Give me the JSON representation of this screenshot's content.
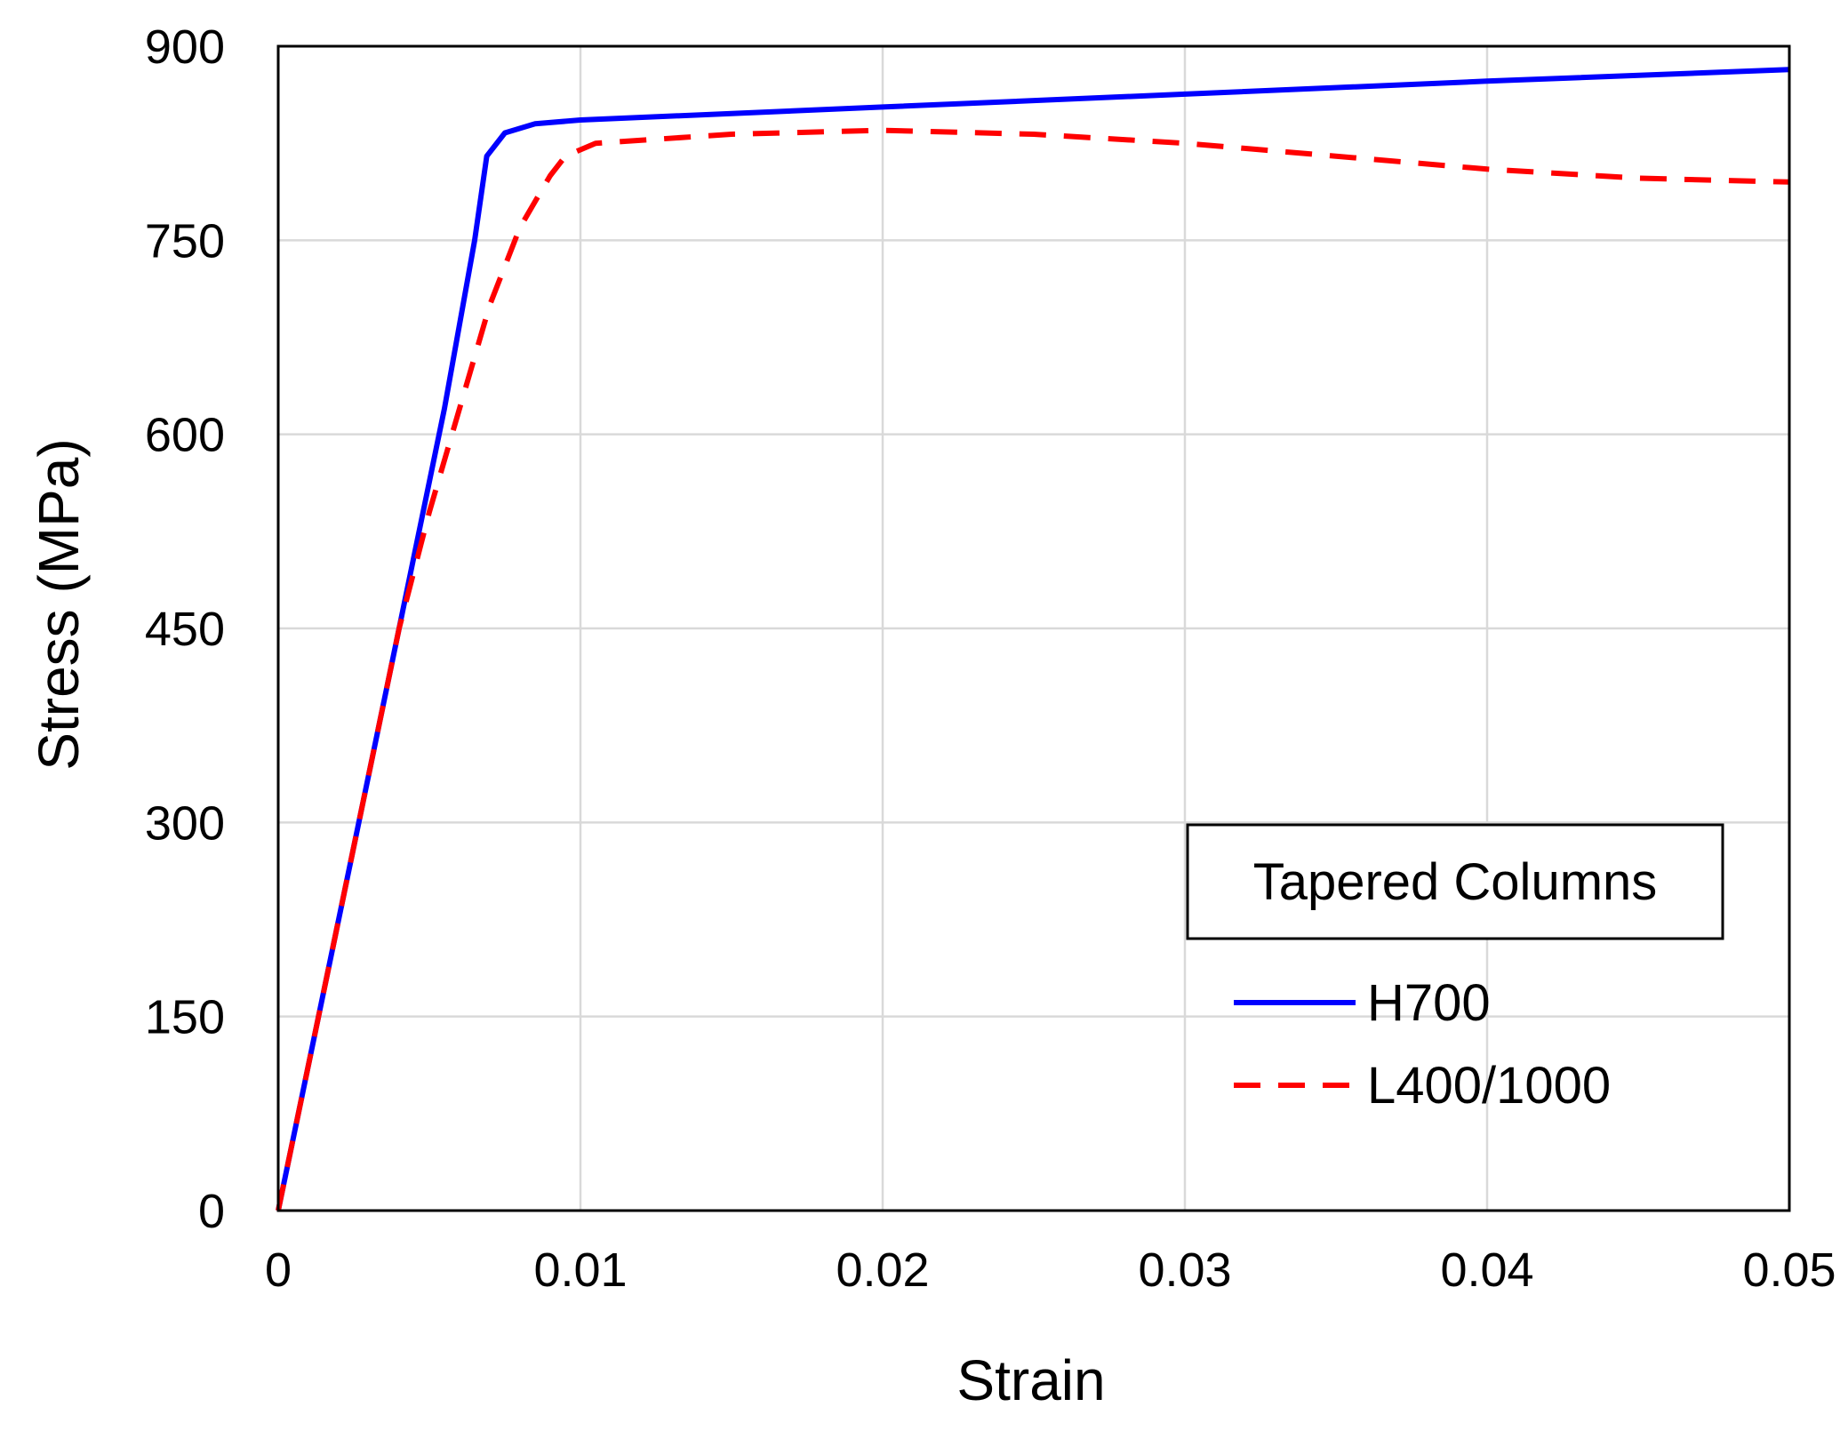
{
  "chart_data": {
    "type": "line",
    "xlabel": "Strain",
    "ylabel": "Stress (MPa)",
    "xlim": [
      0,
      0.05
    ],
    "ylim": [
      0,
      900
    ],
    "xticks": [
      0,
      0.01,
      0.02,
      0.03,
      0.04,
      0.05
    ],
    "xtick_labels": [
      "0",
      "0.01",
      "0.02",
      "0.03",
      "0.04",
      "0.05"
    ],
    "yticks": [
      0,
      150,
      300,
      450,
      600,
      750,
      900
    ],
    "ytick_labels": [
      "0",
      "150",
      "300",
      "450",
      "600",
      "750",
      "900"
    ],
    "grid": true,
    "legend": {
      "title": "Tapered Columns",
      "placement": "bottom-right"
    },
    "series": [
      {
        "name": "H700",
        "color": "#0000ff",
        "dash": "solid",
        "points": [
          [
            0,
            0
          ],
          [
            0.002,
            225
          ],
          [
            0.004,
            450
          ],
          [
            0.0055,
            620
          ],
          [
            0.0065,
            750
          ],
          [
            0.0069,
            815
          ],
          [
            0.0075,
            833
          ],
          [
            0.0085,
            840
          ],
          [
            0.01,
            843
          ],
          [
            0.02,
            853
          ],
          [
            0.03,
            863
          ],
          [
            0.04,
            873
          ],
          [
            0.05,
            882
          ]
        ]
      },
      {
        "name": "L400/1000",
        "color": "#ff0000",
        "dash": "dashed",
        "points": [
          [
            0,
            0
          ],
          [
            0.002,
            225
          ],
          [
            0.004,
            450
          ],
          [
            0.005,
            540
          ],
          [
            0.006,
            620
          ],
          [
            0.007,
            700
          ],
          [
            0.008,
            760
          ],
          [
            0.009,
            800
          ],
          [
            0.0095,
            815
          ],
          [
            0.0105,
            825
          ],
          [
            0.015,
            832
          ],
          [
            0.02,
            835
          ],
          [
            0.025,
            832
          ],
          [
            0.03,
            825
          ],
          [
            0.035,
            815
          ],
          [
            0.04,
            805
          ],
          [
            0.045,
            798
          ],
          [
            0.05,
            795
          ]
        ]
      }
    ]
  }
}
